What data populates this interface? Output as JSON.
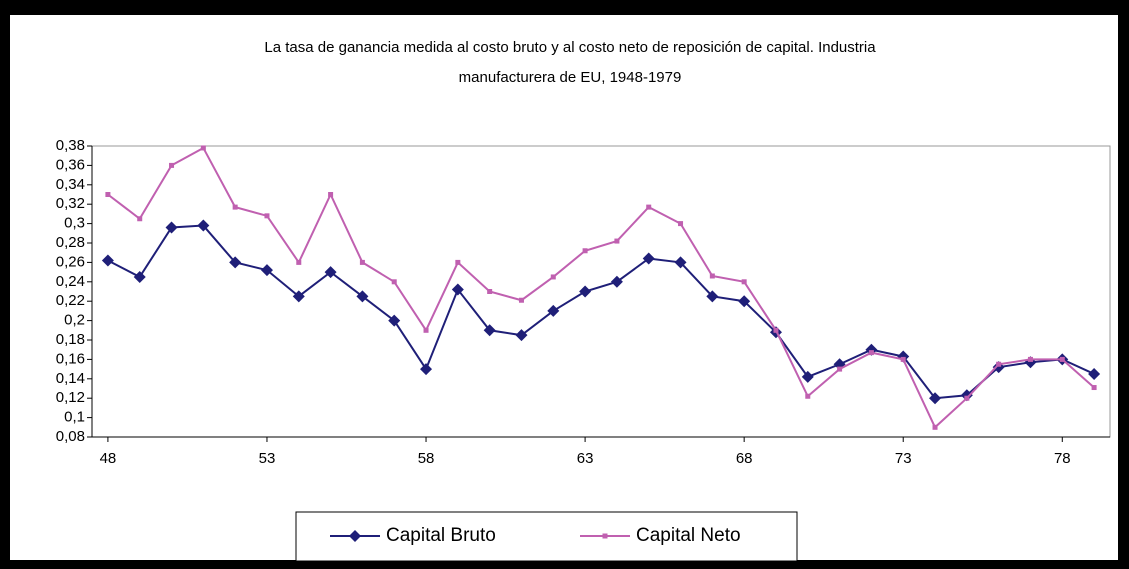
{
  "chart_data": {
    "type": "line",
    "title": "La tasa de ganancia medida al costo bruto y al costo neto de reposición de capital. Industria",
    "subtitle": "manufacturera de EU, 1948-1979",
    "x": [
      48,
      49,
      50,
      51,
      52,
      53,
      54,
      55,
      56,
      57,
      58,
      59,
      60,
      61,
      62,
      63,
      64,
      65,
      66,
      67,
      68,
      69,
      70,
      71,
      72,
      73,
      74,
      75,
      76,
      77,
      78,
      79
    ],
    "xlim": [
      47.5,
      79.5
    ],
    "xticks": [
      48,
      53,
      58,
      63,
      68,
      73,
      78
    ],
    "ylim": [
      0.08,
      0.38
    ],
    "yticks": [
      {
        "value": 0.08,
        "label": "0,08"
      },
      {
        "value": 0.1,
        "label": "0,1"
      },
      {
        "value": 0.12,
        "label": "0,12"
      },
      {
        "value": 0.14,
        "label": "0,14"
      },
      {
        "value": 0.16,
        "label": "0,16"
      },
      {
        "value": 0.18,
        "label": "0,18"
      },
      {
        "value": 0.2,
        "label": "0,2"
      },
      {
        "value": 0.22,
        "label": "0,22"
      },
      {
        "value": 0.24,
        "label": "0,24"
      },
      {
        "value": 0.26,
        "label": "0,26"
      },
      {
        "value": 0.28,
        "label": "0,28"
      },
      {
        "value": 0.3,
        "label": "0,3"
      },
      {
        "value": 0.32,
        "label": "0,32"
      },
      {
        "value": 0.34,
        "label": "0,34"
      },
      {
        "value": 0.36,
        "label": "0,36"
      },
      {
        "value": 0.38,
        "label": "0,38"
      }
    ],
    "legend": "bottom",
    "series": [
      {
        "name": "Capital Bruto",
        "color": "#1f1f78",
        "marker": "diamond",
        "values": [
          0.262,
          0.245,
          0.296,
          0.298,
          0.26,
          0.252,
          0.225,
          0.25,
          0.225,
          0.2,
          0.15,
          0.232,
          0.19,
          0.185,
          0.21,
          0.23,
          0.24,
          0.264,
          0.26,
          0.225,
          0.22,
          0.188,
          0.142,
          0.155,
          0.17,
          0.163,
          0.12,
          0.123,
          0.152,
          0.157,
          0.16,
          0.145
        ]
      },
      {
        "name": "Capital Neto",
        "color": "#c060b0",
        "marker": "square",
        "values": [
          0.33,
          0.305,
          0.36,
          0.378,
          0.317,
          0.308,
          0.26,
          0.33,
          0.26,
          0.24,
          0.19,
          0.26,
          0.23,
          0.221,
          0.245,
          0.272,
          0.282,
          0.317,
          0.3,
          0.246,
          0.24,
          0.19,
          0.122,
          0.15,
          0.167,
          0.16,
          0.09,
          0.12,
          0.155,
          0.16,
          0.16,
          0.131
        ]
      }
    ]
  }
}
